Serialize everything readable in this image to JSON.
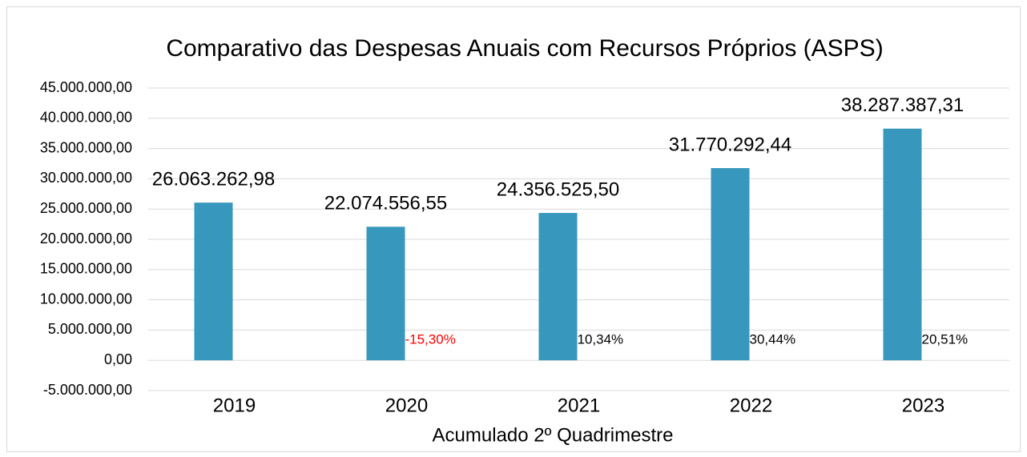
{
  "chart_data": {
    "type": "bar",
    "title": "Comparativo das Despesas Anuais com Recursos Próprios (ASPS)",
    "x_label": "Acumulado 2º Quadrimestre",
    "categories": [
      "2019",
      "2020",
      "2021",
      "2022",
      "2023"
    ],
    "values": [
      26063262.98,
      22074556.55,
      24356525.5,
      31770292.44,
      38287387.31
    ],
    "value_labels": [
      "26.063.262,98",
      "22.074.556,55",
      "24.356.525,50",
      "31.770.292,44",
      "38.287.387,31"
    ],
    "color": "#3797bd",
    "growth": {
      "values": [
        null,
        -15.3,
        10.34,
        30.44,
        20.51
      ],
      "value_labels": [
        null,
        "-15,30%",
        "10,34%",
        "30,44%",
        "20,51%"
      ],
      "color": "#e31a1c",
      "negative_color": "#ff0000",
      "positive_color": "#000000"
    },
    "ylim": [
      -5000000,
      45000000
    ],
    "yticks": [
      {
        "value": -5000000,
        "label": "-5.000.000,00"
      },
      {
        "value": 0,
        "label": "0,00"
      },
      {
        "value": 5000000,
        "label": "5.000.000,00"
      },
      {
        "value": 10000000,
        "label": "10.000.000,00"
      },
      {
        "value": 15000000,
        "label": "15.000.000,00"
      },
      {
        "value": 20000000,
        "label": "20.000.000,00"
      },
      {
        "value": 25000000,
        "label": "25.000.000,00"
      },
      {
        "value": 30000000,
        "label": "30.000.000,00"
      },
      {
        "value": 35000000,
        "label": "35.000.000,00"
      },
      {
        "value": 40000000,
        "label": "40.000.000,00"
      },
      {
        "value": 45000000,
        "label": "45.000.000,00"
      }
    ],
    "grid": true
  }
}
